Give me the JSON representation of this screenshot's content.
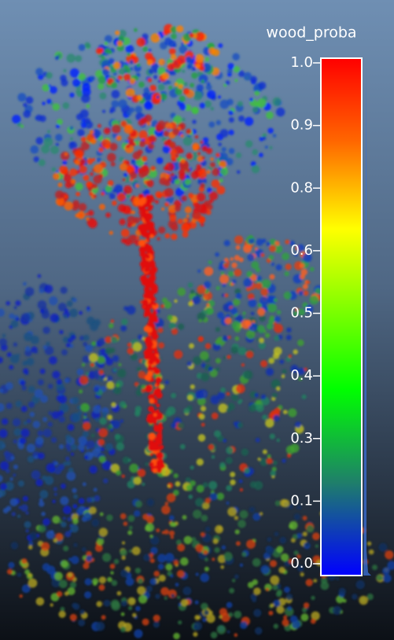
{
  "scalar_bar": {
    "title": "wood_proba",
    "ticks": [
      "1.0",
      "0.9",
      "0.8",
      "0.6",
      "0.5",
      "0.4",
      "0.3",
      "0.1",
      "0.0"
    ]
  }
}
